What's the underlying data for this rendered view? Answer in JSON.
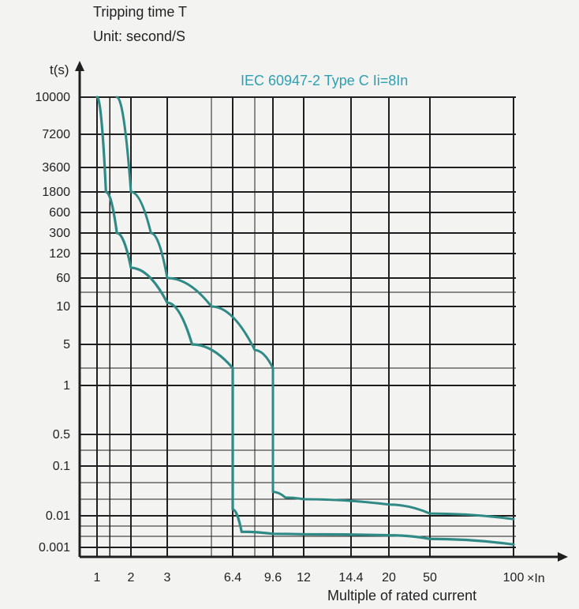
{
  "chart_data": {
    "type": "line",
    "title": "Tripping time T",
    "subtitle": "Unit: second/S",
    "annotation": "IEC 60947-2   Type C Ii=8In",
    "ylabel": "t(s)",
    "xlabel": "Multiple of rated current",
    "xunit": "×In",
    "x_ticks": [
      "1",
      "2",
      "3",
      "6.4",
      "9.6",
      "12",
      "14.4",
      "20",
      "50",
      "100"
    ],
    "y_ticks": [
      "10000",
      "7200",
      "3600",
      "1800",
      "600",
      "300",
      "120",
      "60",
      "10",
      "5",
      "1",
      "0.5",
      "0.1",
      "0.01",
      "0.001"
    ],
    "grid": true,
    "colors": {
      "curve": "#2f8a86",
      "axis": "#1f1f1f",
      "grid": "#1f1f1f",
      "text": "#222222",
      "annotation": "#2f9fb1",
      "background": "#f3f3f1"
    },
    "series": [
      {
        "points": [
          {
            "x": 1,
            "y": 10000
          },
          {
            "x": 1.2,
            "y": 1800
          },
          {
            "x": 1.5,
            "y": 300
          },
          {
            "x": 2,
            "y": 80
          },
          {
            "x": 3,
            "y": 12
          },
          {
            "x": 4,
            "y": 5
          },
          {
            "x": 6.4,
            "y": 2
          },
          {
            "x": 6.4,
            "y": 0.013
          },
          {
            "x": 7,
            "y": 0.003
          },
          {
            "x": 9.6,
            "y": 0.0025
          },
          {
            "x": 12,
            "y": 0.0024
          },
          {
            "x": 20,
            "y": 0.0022
          },
          {
            "x": 50,
            "y": 0.0017
          },
          {
            "x": 100,
            "y": 0.0012
          }
        ]
      },
      {
        "points": [
          {
            "x": 1.5,
            "y": 10000
          },
          {
            "x": 2,
            "y": 1800
          },
          {
            "x": 2.5,
            "y": 300
          },
          {
            "x": 3,
            "y": 60
          },
          {
            "x": 5,
            "y": 10
          },
          {
            "x": 8,
            "y": 4
          },
          {
            "x": 9.6,
            "y": 2
          },
          {
            "x": 9.6,
            "y": 0.03
          },
          {
            "x": 10.5,
            "y": 0.022
          },
          {
            "x": 12,
            "y": 0.02
          },
          {
            "x": 20,
            "y": 0.016
          },
          {
            "x": 50,
            "y": 0.011
          },
          {
            "x": 100,
            "y": 0.008
          }
        ]
      }
    ]
  }
}
